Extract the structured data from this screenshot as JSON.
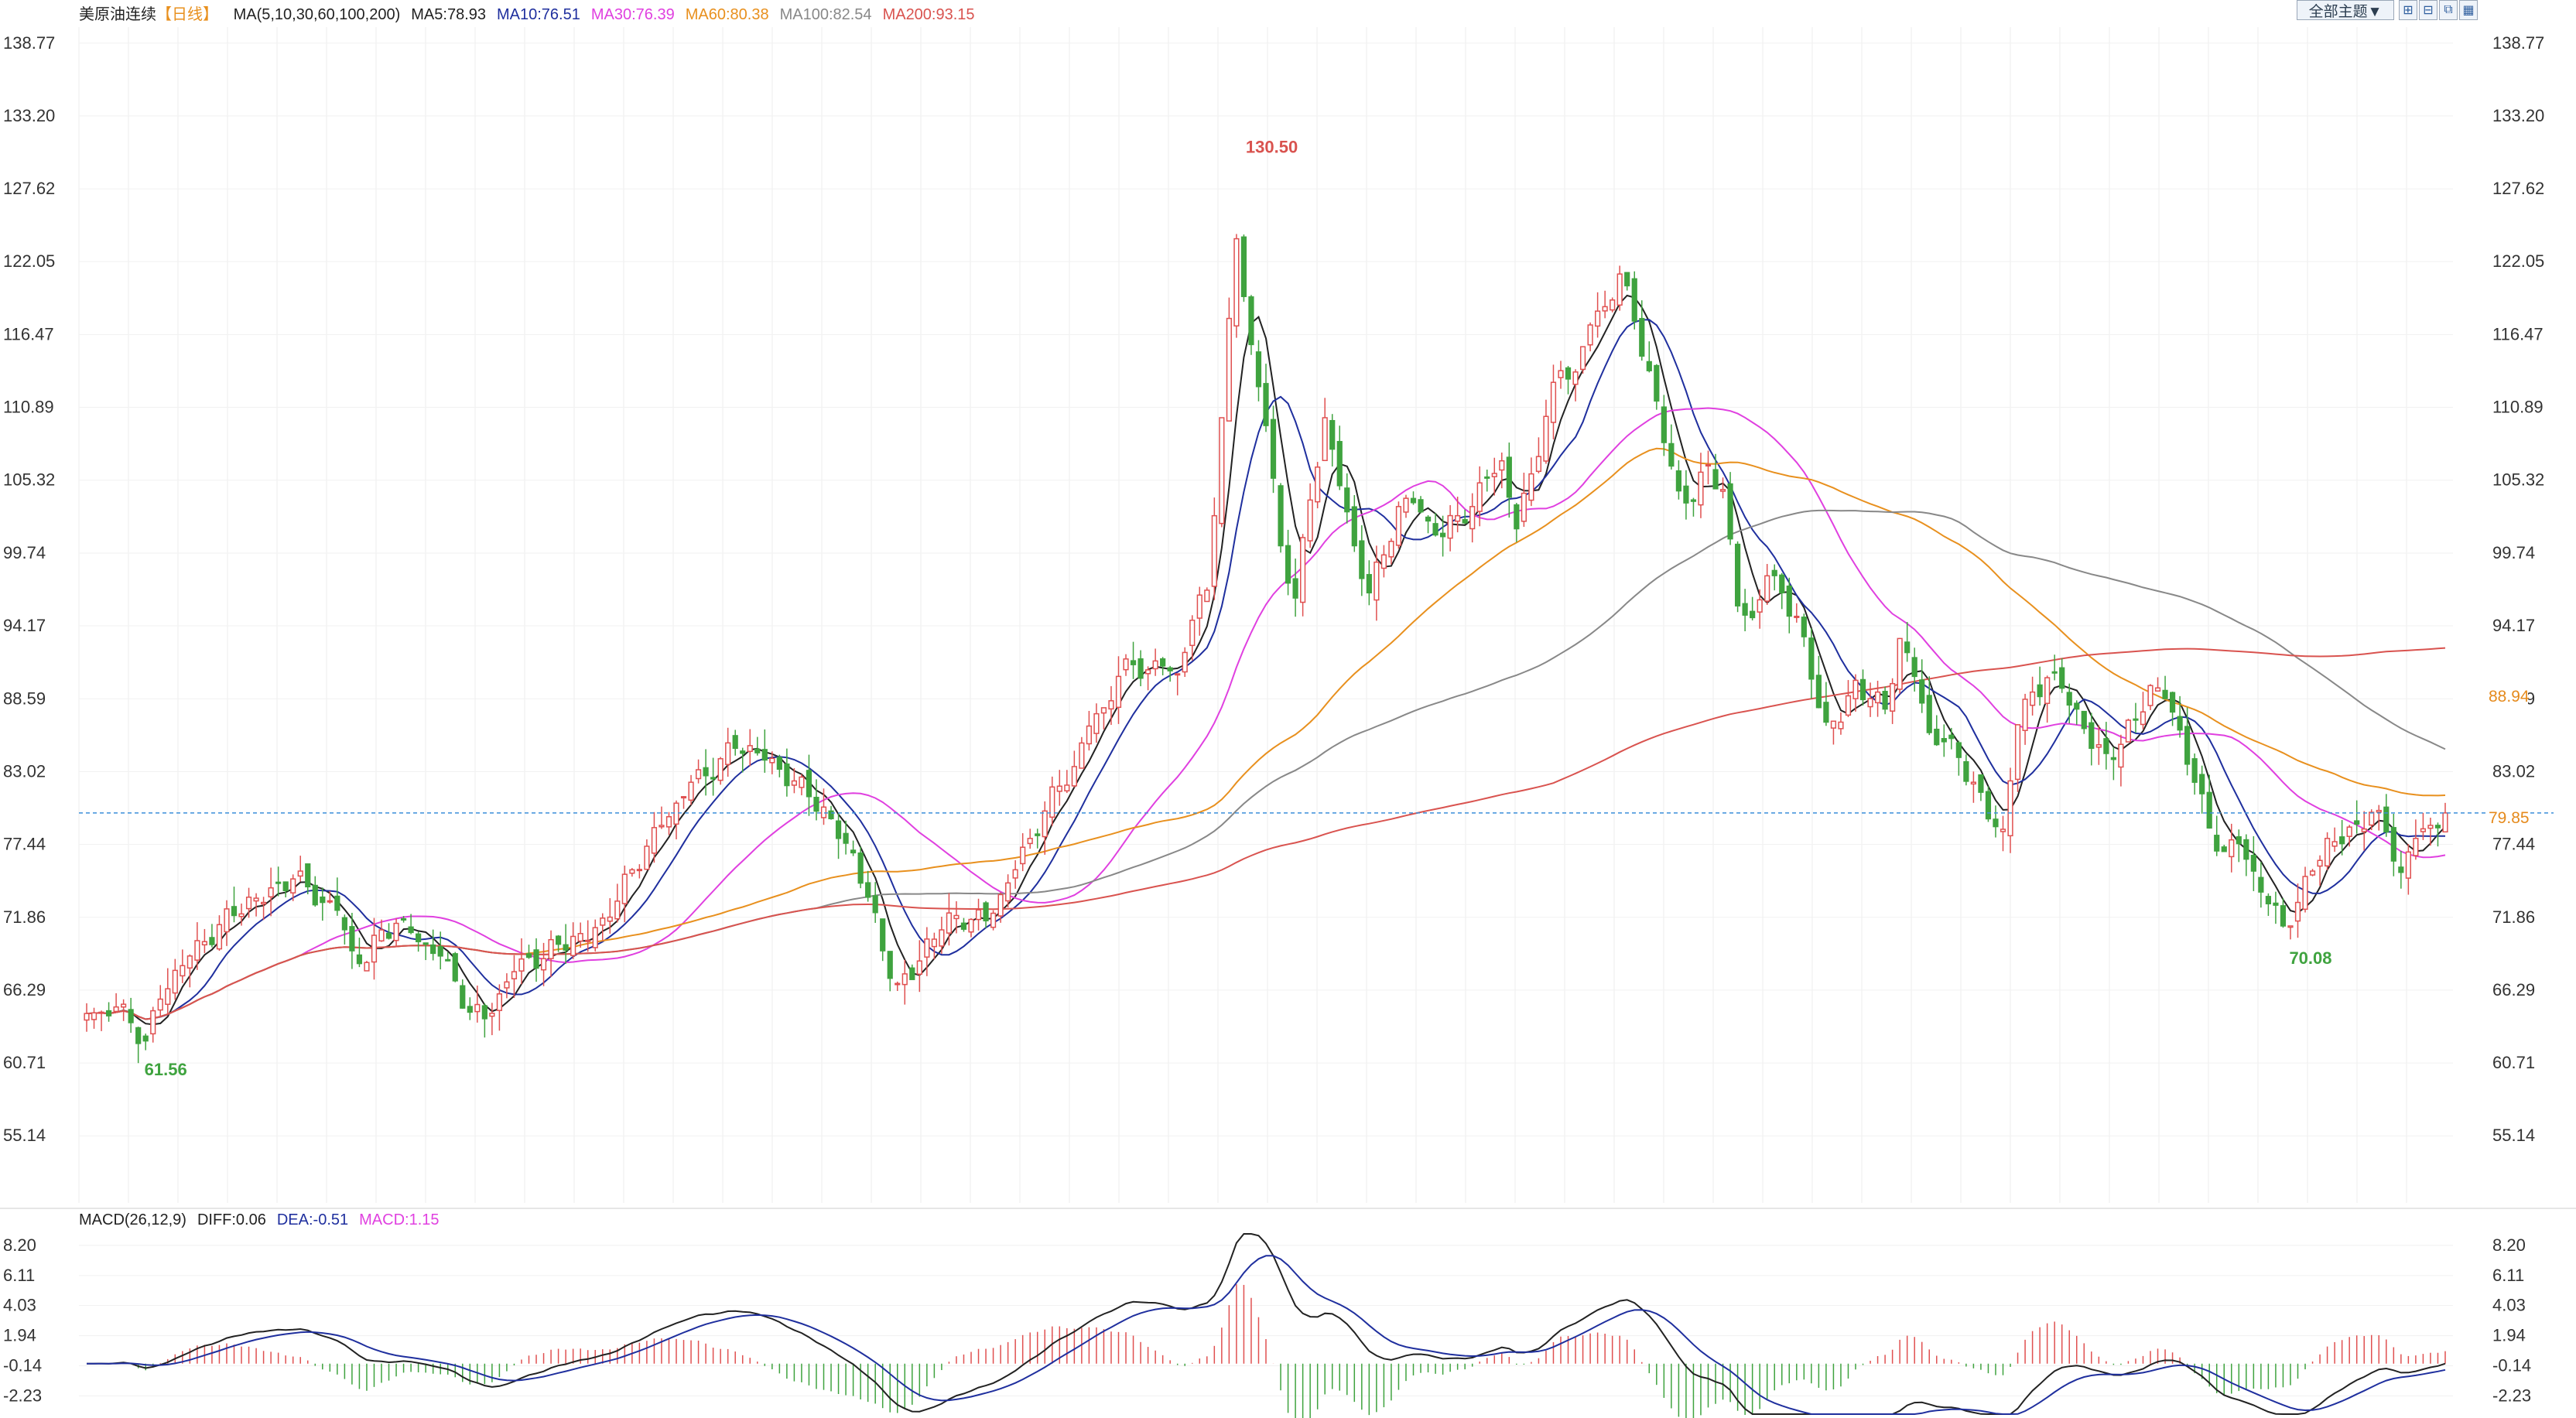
{
  "instrument": {
    "name": "美原油连续",
    "period": "【日线】"
  },
  "ma_legend": [
    {
      "label": "MA(5,10,30,60,100,200)",
      "color": "#222222"
    },
    {
      "label": "MA5:78.93",
      "color": "#222222"
    },
    {
      "label": "MA10:76.51",
      "color": "#1f2f9e"
    },
    {
      "label": "MA30:76.39",
      "color": "#e040e0"
    },
    {
      "label": "MA60:80.38",
      "color": "#e8901e"
    },
    {
      "label": "MA100:82.54",
      "color": "#888888"
    },
    {
      "label": "MA200:93.15",
      "color": "#d9534f"
    }
  ],
  "toolbar": {
    "theme_label": "全部主题▼",
    "tool_icons": [
      "zoom-in-icon",
      "zoom-out-icon",
      "fit-icon",
      "settings-icon"
    ]
  },
  "price_axis": {
    "ticks": [
      "138.77",
      "133.20",
      "127.62",
      "122.05",
      "116.47",
      "110.89",
      "105.32",
      "99.74",
      "94.17",
      "88.59",
      "83.02",
      "77.44",
      "71.86",
      "66.29",
      "60.71",
      "55.14"
    ]
  },
  "current_price": {
    "label": "79.85",
    "value": 79.85
  },
  "secondary_tag": {
    "label": "88.94",
    "value": 88.94
  },
  "high_label": {
    "text": "130.50",
    "value": 130.5
  },
  "low_labels": [
    {
      "text": "61.56",
      "value": 61.56
    },
    {
      "text": "70.08",
      "value": 70.08
    }
  ],
  "macd_header": [
    {
      "label": "MACD(26,12,9)",
      "color": "#222222"
    },
    {
      "label": "DIFF:0.06",
      "color": "#222222"
    },
    {
      "label": "DEA:-0.51",
      "color": "#1f2f9e"
    },
    {
      "label": "MACD:1.15",
      "color": "#e040e0"
    }
  ],
  "macd_axis": {
    "ticks": [
      "8.20",
      "6.11",
      "4.03",
      "1.94",
      "-0.14",
      "-2.23"
    ]
  },
  "colors": {
    "up": "#e05050",
    "down": "#3fa33f",
    "ma5": "#222222",
    "ma10": "#1f2f9e",
    "ma30": "#e040e0",
    "ma60": "#e8901e",
    "ma100": "#888888",
    "ma200": "#d9534f",
    "diff": "#222222",
    "dea": "#1f2f9e",
    "price_line": "#3b8fd9"
  },
  "chart_data": {
    "type": "candlestick",
    "y_range": [
      50,
      140
    ],
    "macd_range": [
      -3.5,
      9
    ],
    "close_series": [
      64.5,
      64.6,
      65,
      63.8,
      62.4,
      65.6,
      67.8,
      68.9,
      70,
      71.3,
      72,
      73.4,
      73,
      74.5,
      74.8,
      74.2,
      73,
      72.4,
      69.3,
      68.4,
      70.9,
      71.4,
      70.7,
      69.8,
      68.9,
      67,
      64.6,
      64.1,
      66,
      67.7,
      68.8,
      68.7,
      69.8,
      70.4,
      70.1,
      71.8,
      73.1,
      75.5,
      77.3,
      78.9,
      80.6,
      82.2,
      82.7,
      84,
      84.8,
      85,
      83.9,
      83.2,
      82.3,
      81.1,
      80.3,
      77.9,
      76.8,
      73.4,
      69.3,
      66.8,
      67.1,
      70.2,
      70.9,
      72,
      71.7,
      71.6,
      73.6,
      75.5,
      77.9,
      80,
      81.9,
      83.4,
      86.5,
      87.9,
      90.3,
      91.2,
      90.8,
      91.1,
      90.5,
      94.6,
      96.9,
      110.1,
      123.8,
      115.7,
      109.5,
      100.3,
      96.3,
      103.8,
      110.1,
      104.9,
      100.3,
      96.7,
      99.6,
      103.3,
      103.6,
      102.2,
      101,
      102.6,
      103.3,
      105.5,
      106.8,
      101.6,
      105.8,
      110.2,
      113.7,
      113.6,
      117.2,
      118.6,
      121.1,
      117.5,
      113.7,
      108.2,
      104.5,
      103.7,
      106.5,
      104.6,
      95.7,
      94.8,
      98,
      96.7,
      94.9,
      90.1,
      86.8,
      86.8,
      90,
      88.6,
      87.8,
      93.2,
      90.3,
      86,
      85.3,
      84.1,
      82.2,
      79.4,
      78.6,
      86.6,
      89.1,
      90.2,
      89.4,
      87.8,
      84.8,
      84.4,
      85.1,
      87,
      89.6,
      88.6,
      86.2,
      82.2,
      78.7,
      76.9,
      77.5,
      75.4,
      72.9,
      71.2,
      73,
      75.4,
      77.9,
      77.5,
      79,
      79.9,
      78.4,
      75.3,
      77.9,
      78.9,
      79.85
    ],
    "price_line": 79.85
  }
}
